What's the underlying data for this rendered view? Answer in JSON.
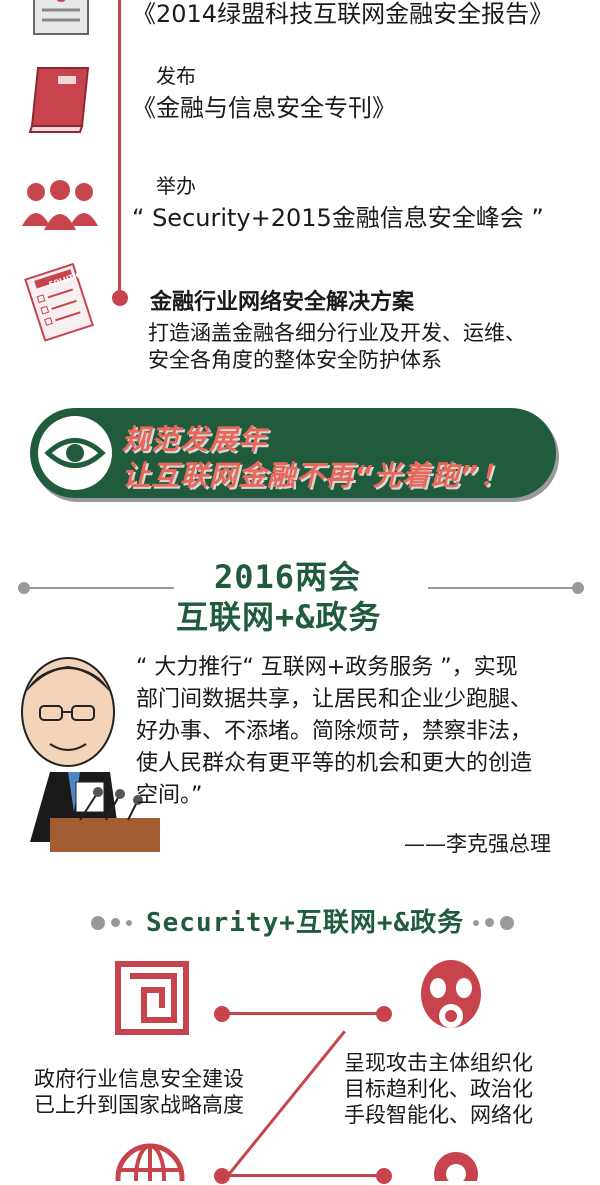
{
  "timeline": {
    "items": [
      {
        "label": "",
        "title": "《2014绿盟科技互联网金融安全报告》",
        "icon": "report-icon"
      },
      {
        "label": "发布",
        "title": "《金融与信息安全专刊》",
        "icon": "book-icon"
      },
      {
        "label": "举办",
        "title": "“ Security+2015金融信息安全峰会 ”",
        "icon": "people-icon"
      },
      {
        "label": "",
        "title": "金融行业网络安全解决方案",
        "icon": "solutions-icon",
        "desc": [
          "打造涵盖金融各细分行业及开发、运维、",
          "安全各角度的整体安全防护体系"
        ],
        "badge": "SOLUTIONS"
      }
    ]
  },
  "banner": {
    "line1": "规范发展年",
    "line2": "让互联网金融不再“光着跑”！"
  },
  "section2016": {
    "title1": "2016两会",
    "title2": "互联网+&政务"
  },
  "quote": {
    "lines": [
      "“ 大力推行“ 互联网+政务服务 ”，实现",
      "部门间数据共享，让居民和企业少跑腿、",
      "好办事、不添堵。简除烦苛，禁察非法，",
      "使人民群众有更平等的机会和更大的创造",
      "空间。”"
    ],
    "author": "——李克强总理"
  },
  "security": {
    "title": "Security+互联网+&政务",
    "left_text": [
      "政府行业信息安全建设",
      "已上升到国家战略高度"
    ],
    "right_text": [
      "呈现攻击主体组织化",
      "目标趋利化、政治化",
      "手段智能化、网络化"
    ]
  },
  "colors": {
    "accent": "#c8444d",
    "green": "#1f5b3c",
    "gray": "#999999"
  }
}
